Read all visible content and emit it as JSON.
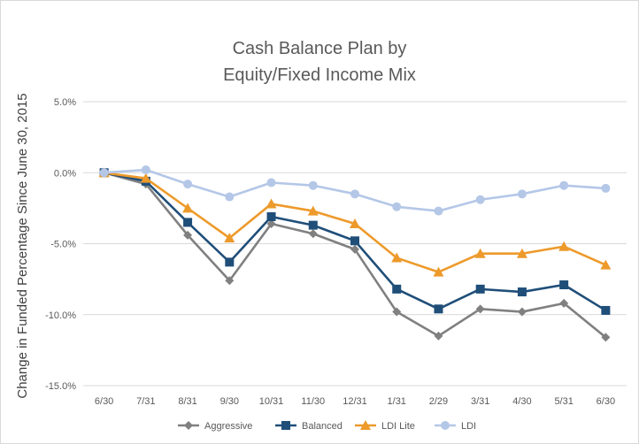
{
  "chart_data": {
    "type": "line",
    "title": [
      "Cash Balance Plan by",
      "Equity/Fixed Income Mix"
    ],
    "xlabel": "",
    "ylabel": "Change in Funded Percentage Since June 30, 2015",
    "categories": [
      "6/30",
      "7/31",
      "8/31",
      "9/30",
      "10/31",
      "11/30",
      "12/31",
      "1/31",
      "2/29",
      "3/31",
      "4/30",
      "5/31",
      "6/30"
    ],
    "ylim": [
      -15.0,
      5.0
    ],
    "yticks": [
      5.0,
      0.0,
      -5.0,
      -10.0,
      -15.0
    ],
    "ytick_labels": [
      "5.0%",
      "0.0%",
      "-5.0%",
      "-10.0%",
      "-15.0%"
    ],
    "grid": true,
    "legend_position": "bottom",
    "series": [
      {
        "name": "Aggressive",
        "color": "#808080",
        "marker": "diamond",
        "values": [
          0.0,
          -0.8,
          -4.4,
          -7.6,
          -3.6,
          -4.3,
          -5.4,
          -9.8,
          -11.5,
          -9.6,
          -9.8,
          -9.2,
          -11.6
        ]
      },
      {
        "name": "Balanced",
        "color": "#1f4e79",
        "marker": "square",
        "values": [
          0.0,
          -0.6,
          -3.5,
          -6.3,
          -3.1,
          -3.7,
          -4.8,
          -8.2,
          -9.6,
          -8.2,
          -8.4,
          -7.9,
          -9.7
        ]
      },
      {
        "name": "LDI Lite",
        "color": "#ed9a2b",
        "marker": "triangle",
        "values": [
          0.0,
          -0.4,
          -2.5,
          -4.6,
          -2.2,
          -2.7,
          -3.6,
          -6.0,
          -7.0,
          -5.7,
          -5.7,
          -5.2,
          -6.5
        ]
      },
      {
        "name": "LDI",
        "color": "#b4c7e7",
        "marker": "circle",
        "values": [
          0.0,
          0.2,
          -0.8,
          -1.7,
          -0.7,
          -0.9,
          -1.5,
          -2.4,
          -2.7,
          -1.9,
          -1.5,
          -0.9,
          -1.1
        ]
      }
    ]
  }
}
